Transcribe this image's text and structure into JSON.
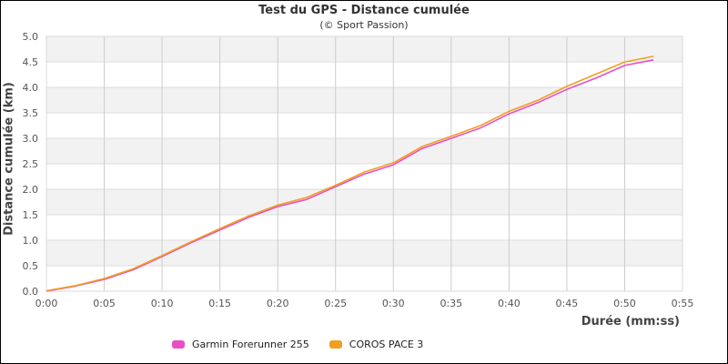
{
  "chart": {
    "title": "Test du GPS - Distance cumulée",
    "subtitle": "(© Sport Passion)",
    "xlabel": "Durée (mm:ss)",
    "ylabel": "Distance cumulée (km)",
    "legend": [
      {
        "name": "Garmin Forerunner 255",
        "color": "#e94fc4"
      },
      {
        "name": "COROS PACE 3",
        "color": "#f0a020"
      }
    ]
  },
  "chart_data": {
    "type": "line",
    "title": "Test du GPS - Distance cumulée",
    "subtitle": "(© Sport Passion)",
    "xlabel": "Durée (mm:ss)",
    "ylabel": "Distance cumulée (km)",
    "x_ticks": [
      "0:00",
      "0:05",
      "0:10",
      "0:15",
      "0:20",
      "0:25",
      "0:30",
      "0:35",
      "0:40",
      "0:45",
      "0:50",
      "0:55"
    ],
    "y_ticks": [
      "0.0",
      "0.5",
      "1.0",
      "1.5",
      "2.0",
      "2.5",
      "3.0",
      "3.5",
      "4.0",
      "4.5",
      "5.0"
    ],
    "xlim_minutes": [
      0,
      55
    ],
    "ylim": [
      0,
      5
    ],
    "grid": true,
    "alternating_bands": true,
    "legend_position": "bottom",
    "x": [
      0,
      2.5,
      5,
      7.5,
      10,
      12.5,
      15,
      17.5,
      20,
      22.5,
      25,
      27.5,
      30,
      32.5,
      35,
      37.5,
      40,
      42.5,
      45,
      47.5,
      50,
      52.5
    ],
    "series": [
      {
        "name": "Garmin Forerunner 255",
        "color": "#e94fc4",
        "values": [
          0.0,
          0.1,
          0.23,
          0.42,
          0.68,
          0.95,
          1.2,
          1.45,
          1.66,
          1.8,
          2.05,
          2.3,
          2.48,
          2.8,
          3.0,
          3.2,
          3.48,
          3.7,
          3.96,
          4.18,
          4.43,
          4.54
        ]
      },
      {
        "name": "COROS PACE 3",
        "color": "#f0a020",
        "values": [
          0.0,
          0.1,
          0.24,
          0.43,
          0.69,
          0.96,
          1.22,
          1.47,
          1.68,
          1.83,
          2.07,
          2.33,
          2.51,
          2.83,
          3.03,
          3.24,
          3.52,
          3.74,
          4.01,
          4.25,
          4.49,
          4.6
        ]
      }
    ]
  }
}
